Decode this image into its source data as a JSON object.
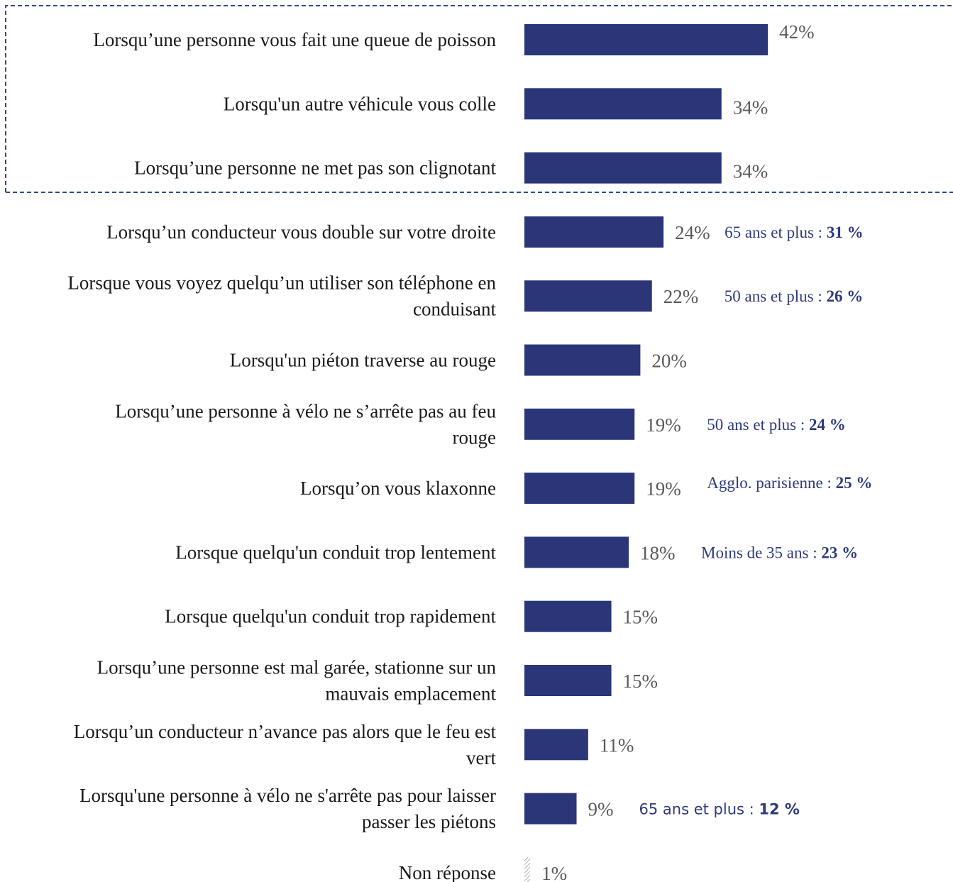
{
  "chart_data": {
    "type": "bar",
    "orientation": "horizontal",
    "bar_color": "#2a3678",
    "highlight_box_color": "#2e4a8c",
    "categories": [
      [
        "Lorsqu’une personne vous fait une queue de poisson"
      ],
      [
        "Lorsqu'un autre véhicule vous colle"
      ],
      [
        "Lorsqu’une personne ne met pas son clignotant"
      ],
      [
        "Lorsqu’un conducteur vous double sur votre droite"
      ],
      [
        "Lorsque vous voyez quelqu’un utiliser son téléphone en",
        "conduisant"
      ],
      [
        "Lorsqu'un piéton traverse au rouge"
      ],
      [
        "Lorsqu’une personne à vélo ne s’arrête pas au feu",
        "rouge"
      ],
      [
        "Lorsqu’on vous klaxonne"
      ],
      [
        "Lorsque quelqu'un conduit trop lentement"
      ],
      [
        "Lorsque quelqu'un conduit trop rapidement"
      ],
      [
        "Lorsqu’une personne est mal garée, stationne sur un",
        "mauvais emplacement"
      ],
      [
        "Lorsqu’un conducteur n’avance pas alors que le feu est",
        "vert"
      ],
      [
        "Lorsqu'une personne à vélo ne s'arrête pas pour laisser",
        "passer les piétons"
      ],
      [
        "Non réponse"
      ]
    ],
    "values": [
      42,
      34,
      34,
      24,
      22,
      20,
      19,
      19,
      18,
      15,
      15,
      11,
      9,
      1
    ],
    "value_labels": [
      "42%",
      "34%",
      "34%",
      "24%",
      "22%",
      "20%",
      "19%",
      "19%",
      "18%",
      "15%",
      "15%",
      "11%",
      "9%",
      "1%"
    ],
    "highlighted_categories": [
      0,
      1,
      2
    ],
    "hatched_categories": [
      13
    ],
    "annotations": [
      {
        "category": 3,
        "label": "65 ans et plus : ",
        "value": "31 %",
        "font": "serif"
      },
      {
        "category": 4,
        "label": "50 ans et plus : ",
        "value": "26 %",
        "font": "serif"
      },
      {
        "category": 6,
        "label": "50 ans et plus : ",
        "value": "24 %",
        "font": "serif"
      },
      {
        "category": 7,
        "label": "Agglo. parisienne : ",
        "value": "25 %",
        "font": "serif"
      },
      {
        "category": 8,
        "label": "Moins de 35 ans : ",
        "value": "23 %",
        "font": "serif"
      },
      {
        "category": 12,
        "label": "65 ans et plus : ",
        "value": "12 %",
        "font": "sans"
      }
    ]
  }
}
